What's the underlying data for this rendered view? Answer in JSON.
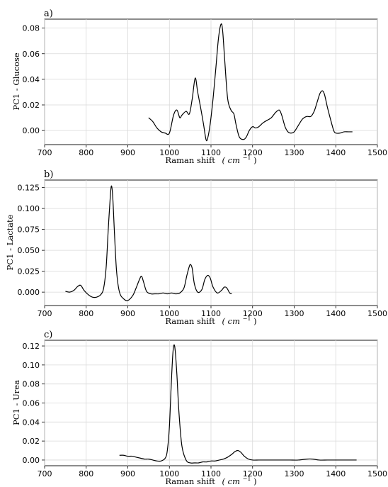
{
  "chart_data": [
    {
      "type": "line",
      "panel_label": "a)",
      "xlabel": "Raman shift",
      "xlabel_unit": "cm",
      "xlabel_unit_exp": "−1",
      "ylabel": "PC1 - Glucose",
      "xlim": [
        700,
        1500
      ],
      "ylim": [
        -0.011,
        0.087
      ],
      "xticks": [
        "700",
        "800",
        "900",
        "1000",
        "1100",
        "1200",
        "1300",
        "1400",
        "1500"
      ],
      "yticks": [
        "0.00",
        "0.02",
        "0.04",
        "0.06",
        "0.08"
      ],
      "grid": true,
      "series": [
        {
          "x": [
            950,
            960,
            970,
            980,
            990,
            1000,
            1010,
            1018,
            1025,
            1030,
            1040,
            1048,
            1055,
            1062,
            1068,
            1075,
            1082,
            1088,
            1092,
            1098,
            1105,
            1112,
            1118,
            1124,
            1128,
            1133,
            1140,
            1148,
            1155,
            1160,
            1168,
            1178,
            1185,
            1192,
            1200,
            1207,
            1215,
            1225,
            1235,
            1245,
            1255,
            1264,
            1270,
            1278,
            1285,
            1292,
            1300,
            1310,
            1320,
            1330,
            1340,
            1348,
            1355,
            1362,
            1368,
            1373,
            1380,
            1388,
            1395,
            1400,
            1410,
            1420,
            1430,
            1440
          ],
          "y": [
            0.01,
            0.007,
            0.002,
            -0.001,
            -0.002,
            -0.002,
            0.012,
            0.016,
            0.01,
            0.012,
            0.015,
            0.013,
            0.025,
            0.041,
            0.03,
            0.018,
            0.005,
            -0.007,
            -0.006,
            0.005,
            0.025,
            0.05,
            0.072,
            0.083,
            0.078,
            0.055,
            0.025,
            0.016,
            0.013,
            0.005,
            -0.005,
            -0.007,
            -0.005,
            0.0,
            0.003,
            0.002,
            0.003,
            0.006,
            0.008,
            0.01,
            0.014,
            0.016,
            0.012,
            0.003,
            -0.001,
            -0.002,
            -0.001,
            0.004,
            0.009,
            0.011,
            0.011,
            0.015,
            0.022,
            0.029,
            0.031,
            0.028,
            0.018,
            0.008,
            0.0,
            -0.002,
            -0.002,
            -0.001,
            -0.001,
            -0.001
          ]
        }
      ]
    },
    {
      "type": "line",
      "panel_label": "b)",
      "xlabel": "Raman shift",
      "xlabel_unit": "cm",
      "xlabel_unit_exp": "−1",
      "ylabel": "PC1 - Lactate",
      "xlim": [
        700,
        1500
      ],
      "ylim": [
        -0.016,
        0.134
      ],
      "xticks": [
        "700",
        "800",
        "900",
        "1000",
        "1100",
        "1200",
        "1300",
        "1400",
        "1500"
      ],
      "yticks": [
        "0.000",
        "0.025",
        "0.050",
        "0.075",
        "0.100",
        "0.125"
      ],
      "grid": true,
      "series": [
        {
          "x": [
            750,
            760,
            770,
            780,
            787,
            795,
            805,
            815,
            825,
            835,
            842,
            848,
            853,
            858,
            861,
            864,
            868,
            873,
            880,
            890,
            900,
            912,
            920,
            928,
            933,
            938,
            945,
            955,
            965,
            975,
            985,
            995,
            1005,
            1015,
            1025,
            1035,
            1042,
            1048,
            1051,
            1055,
            1060,
            1068,
            1078,
            1085,
            1092,
            1098,
            1105,
            1115,
            1125,
            1132,
            1138,
            1145,
            1150
          ],
          "y": [
            0.001,
            0.0,
            0.002,
            0.007,
            0.008,
            0.002,
            -0.003,
            -0.006,
            -0.006,
            -0.003,
            0.005,
            0.03,
            0.075,
            0.115,
            0.127,
            0.112,
            0.07,
            0.025,
            0.0,
            -0.008,
            -0.01,
            -0.004,
            0.005,
            0.015,
            0.019,
            0.012,
            0.001,
            -0.002,
            -0.002,
            -0.002,
            -0.001,
            -0.002,
            -0.001,
            -0.002,
            -0.001,
            0.005,
            0.02,
            0.031,
            0.033,
            0.028,
            0.01,
            0.0,
            0.003,
            0.015,
            0.02,
            0.017,
            0.006,
            -0.001,
            0.002,
            0.006,
            0.005,
            -0.001,
            -0.002
          ]
        }
      ]
    },
    {
      "type": "line",
      "panel_label": "c)",
      "xlabel": "Raman shift",
      "xlabel_unit": "cm",
      "xlabel_unit_exp": "−1",
      "ylabel": "PC1 - Urea",
      "xlim": [
        700,
        1500
      ],
      "ylim": [
        -0.006,
        0.126
      ],
      "xticks": [
        "700",
        "800",
        "900",
        "1000",
        "1100",
        "1200",
        "1300",
        "1400",
        "1500"
      ],
      "yticks": [
        "0.00",
        "0.02",
        "0.04",
        "0.06",
        "0.08",
        "0.10",
        "0.12"
      ],
      "grid": true,
      "series": [
        {
          "x": [
            880,
            890,
            900,
            910,
            920,
            930,
            940,
            950,
            960,
            970,
            980,
            990,
            995,
            1000,
            1004,
            1008,
            1011,
            1014,
            1018,
            1023,
            1030,
            1040,
            1050,
            1060,
            1070,
            1080,
            1090,
            1100,
            1110,
            1120,
            1130,
            1140,
            1150,
            1158,
            1165,
            1172,
            1180,
            1190,
            1200,
            1215,
            1230,
            1250,
            1270,
            1290,
            1310,
            1330,
            1345,
            1360,
            1380,
            1400,
            1420,
            1440,
            1450
          ],
          "y": [
            0.005,
            0.005,
            0.004,
            0.004,
            0.003,
            0.002,
            0.001,
            0.001,
            0.0,
            -0.001,
            -0.001,
            0.002,
            0.01,
            0.035,
            0.075,
            0.11,
            0.121,
            0.115,
            0.09,
            0.05,
            0.015,
            0.0,
            -0.003,
            -0.003,
            -0.003,
            -0.002,
            -0.002,
            -0.001,
            -0.001,
            0.0,
            0.001,
            0.003,
            0.006,
            0.009,
            0.01,
            0.008,
            0.004,
            0.001,
            0.0,
            0.0,
            0.0,
            0.0,
            0.0,
            0.0,
            0.0,
            0.001,
            0.001,
            0.0,
            0.0,
            0.0,
            0.0,
            0.0,
            0.0
          ]
        }
      ]
    }
  ]
}
